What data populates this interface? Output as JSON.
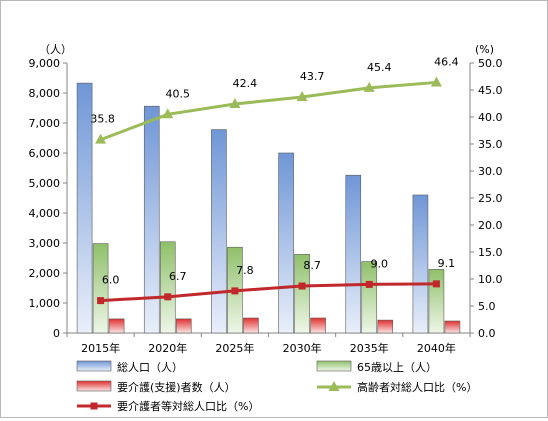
{
  "chart_data": {
    "type": "bar",
    "left_axis_unit": "（人）",
    "right_axis_unit": "(%)",
    "categories": [
      "2015年",
      "2020年",
      "2025年",
      "2030年",
      "2035年",
      "2040年"
    ],
    "left_ylim": [
      0,
      9000
    ],
    "left_ticks": [
      "0",
      "1,000",
      "2,000",
      "3,000",
      "4,000",
      "5,000",
      "6,000",
      "7,000",
      "8,000",
      "9,000"
    ],
    "right_ylim": [
      0,
      50
    ],
    "right_ticks": [
      "0.0",
      "5.0",
      "10.0",
      "15.0",
      "20.0",
      "25.0",
      "30.0",
      "35.0",
      "40.0",
      "45.0",
      "50.0"
    ],
    "grid": false,
    "legend_position": "bottom",
    "bar_series": [
      {
        "name": "総人口（人）",
        "axis": "left",
        "color": "#6f96d6",
        "values": [
          8330,
          7560,
          6780,
          6000,
          5260,
          4600
        ]
      },
      {
        "name": "65歳以上（人）",
        "axis": "left",
        "color": "#8fc06a",
        "values": [
          2980,
          3040,
          2860,
          2620,
          2380,
          2120
        ]
      },
      {
        "name": "要介護(支援)者数（人）",
        "axis": "left",
        "color": "#e03030",
        "values": [
          470,
          470,
          500,
          500,
          430,
          400
        ]
      }
    ],
    "line_series": [
      {
        "name": "高齢者対総人口比（%）",
        "axis": "right",
        "color": "#9bbb59",
        "marker": "triangle",
        "values": [
          35.8,
          40.5,
          42.4,
          43.7,
          45.4,
          46.4
        ],
        "labels": [
          "35.8",
          "40.5",
          "42.4",
          "43.7",
          "45.4",
          "46.4"
        ]
      },
      {
        "name": "要介護者等対総人口比（%）",
        "axis": "right",
        "color": "#c0282b",
        "marker": "square",
        "values": [
          6.0,
          6.7,
          7.8,
          8.7,
          9.0,
          9.1
        ],
        "labels": [
          "6.0",
          "6.7",
          "7.8",
          "8.7",
          "9.0",
          "9.1"
        ]
      }
    ]
  }
}
